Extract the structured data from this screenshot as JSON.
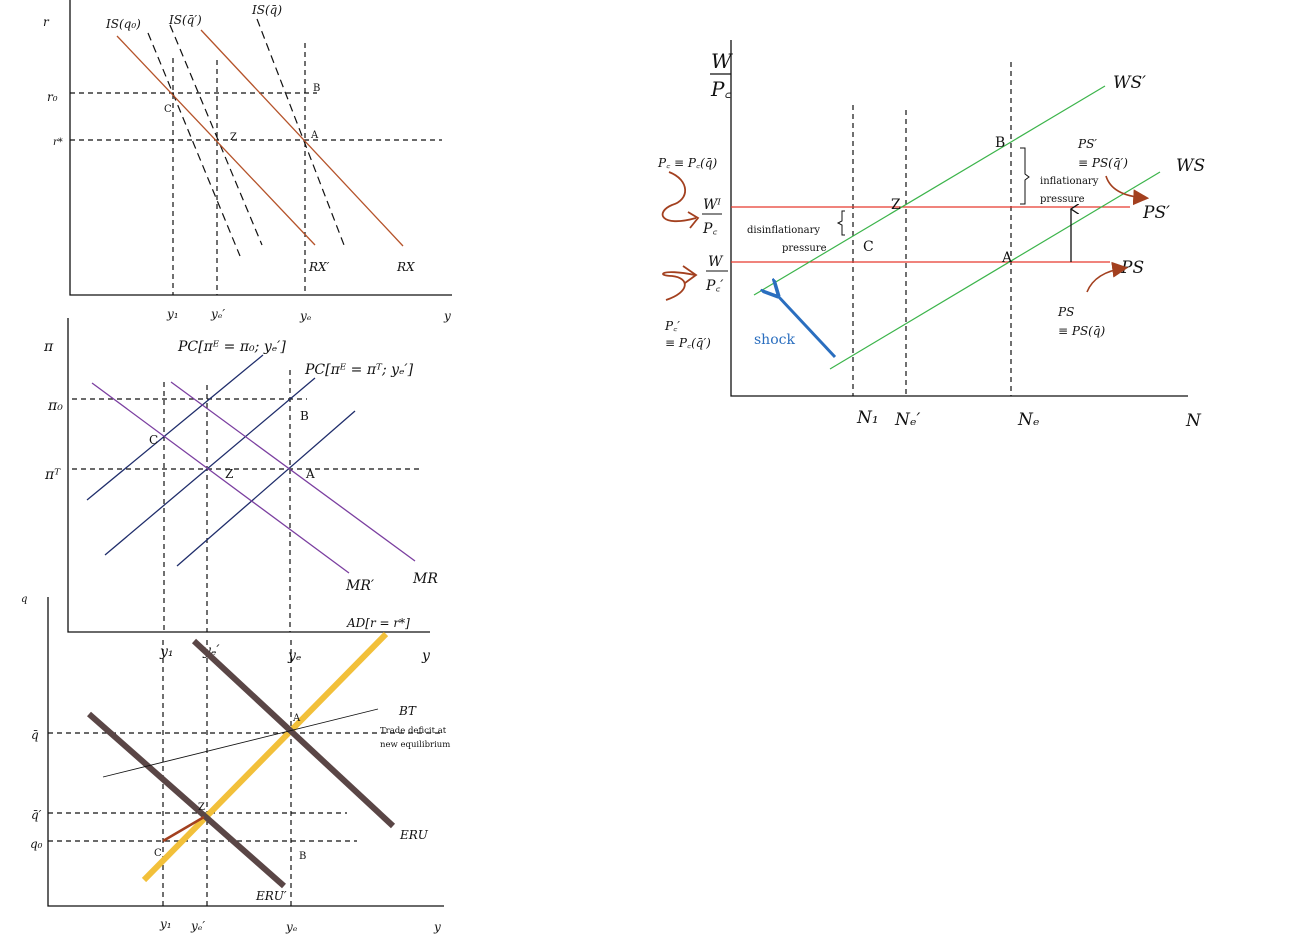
{
  "colors": {
    "rx": "#b5532a",
    "pc": "#1f2d6b",
    "mr": "#7b3fa0",
    "ad": "#f2c03a",
    "eru": "#5a4646",
    "ws": "#3cb44b",
    "ps": "#e8392f",
    "shock": "#2a6ebf",
    "arrow": "#a3401f"
  },
  "panel_is": {
    "y_axis": "r",
    "x_axis": "y",
    "r0": "r₀",
    "rstar": "r*",
    "is_q0": "IS(q₀)",
    "is_qbar_prime": "IS(q̄′)",
    "is_qbar": "IS(q̄)",
    "rx_prime": "RX′",
    "rx": "RX",
    "points": {
      "b": "B",
      "c": "C",
      "z": "Z",
      "a": "A"
    },
    "ticks": {
      "y1": "y₁",
      "ye_prime": "yₑ′",
      "ye": "yₑ"
    }
  },
  "panel_pc": {
    "y_axis": "π",
    "pi0": "π₀",
    "piT": "πᵀ",
    "pc_pi0": "PC[πᴱ = π₀; yₑ′]",
    "pc_piT": "PC[πᴱ = πᵀ; yₑ′]",
    "mr_prime": "MR′",
    "mr": "MR",
    "ad": "AD[r = r*]",
    "points": {
      "b": "B",
      "c": "C",
      "z": "Z",
      "a": "A"
    },
    "ticks": {
      "y1": "y₁",
      "ye_prime": "yₑ′",
      "ye": "yₑ",
      "y": "y"
    }
  },
  "panel_q": {
    "y_axis": "q",
    "qbar": "q̄",
    "qbar_prime": "q̄′",
    "q0": "q₀",
    "bt": "BT",
    "note_line1": "Trade deficit at",
    "note_line2": "new equilibrium",
    "eru": "ERU",
    "eru_prime": "ERU′",
    "points": {
      "a": "A",
      "z": "Z",
      "c": "C",
      "b": "B"
    },
    "ticks": {
      "y1": "y₁",
      "ye_prime": "yₑ′",
      "ye": "yₑ",
      "y": "y"
    }
  },
  "panel_labour": {
    "y_num": "W",
    "y_den": "P꜀",
    "ws_prime": "WS′",
    "ws": "WS",
    "ps_prime": "PS′",
    "ps": "PS",
    "ps_prime_def1": "PS′",
    "ps_prime_def2": "≡ PS(q̄′)",
    "ps_def1": "PS",
    "ps_def2": "≡ PS(q̄)",
    "pc_def": "P꜀ ≡ P꜀(q̄)",
    "wi_num": "Wᴵ",
    "wi_den": "P꜀",
    "w_num": "W",
    "w_den": "P꜀′",
    "pc_prime_def1": "P꜀′",
    "pc_prime_def2": "≡ P꜀(q̄′)",
    "inflationary1": "inflationary",
    "inflationary2": "pressure",
    "disinflationary1": "disinflationary",
    "disinflationary2": "pressure",
    "shock": "shock",
    "points": {
      "b": "B",
      "z": "Z",
      "c": "C",
      "a": "A"
    },
    "ticks": {
      "n1": "N₁",
      "ne_prime": "Nₑ′",
      "ne": "Nₑ",
      "n": "N"
    }
  }
}
